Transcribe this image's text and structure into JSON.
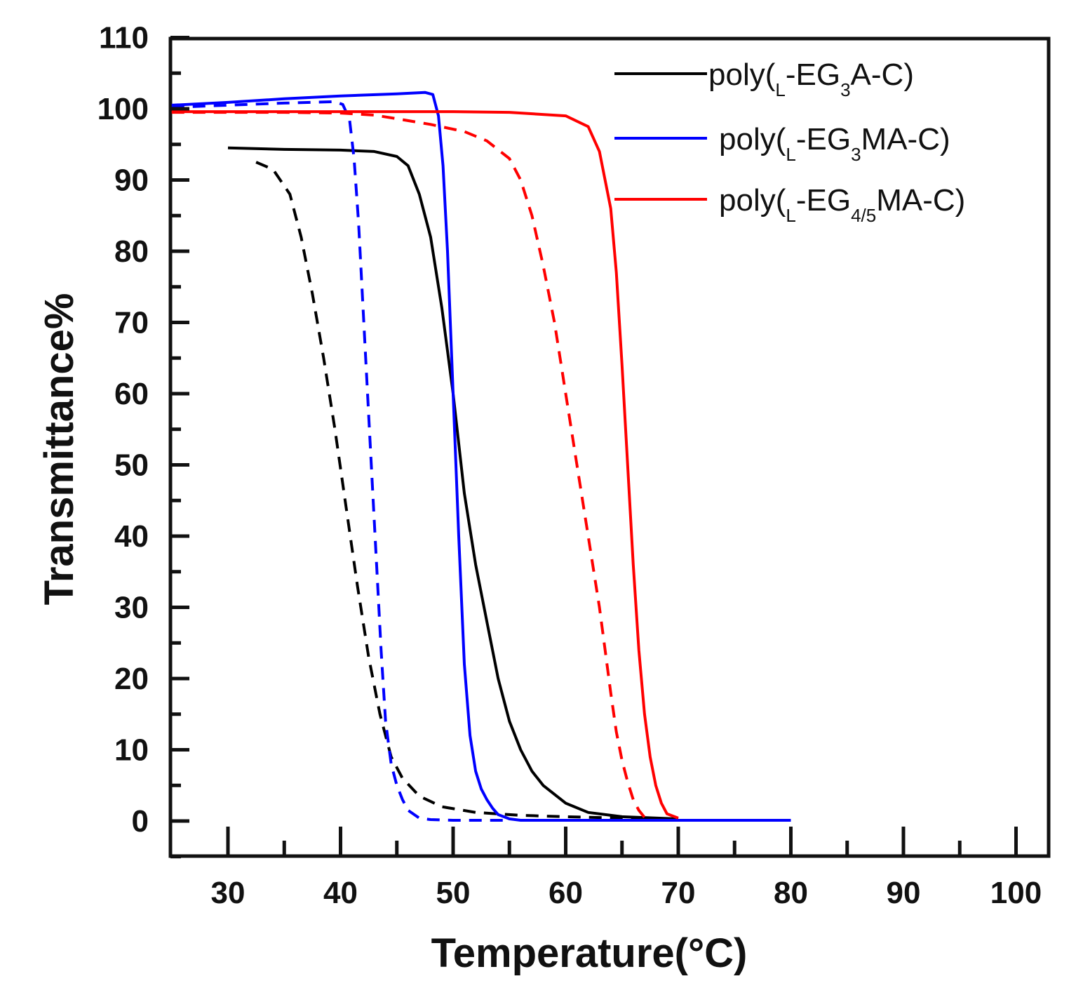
{
  "chart_data": {
    "type": "line",
    "xlabel": "Temperature(°C)",
    "ylabel": "Transmittance%",
    "xlim": [
      25,
      103
    ],
    "ylim": [
      -5,
      110
    ],
    "xticks": [
      30,
      40,
      50,
      60,
      70,
      80,
      90,
      100
    ],
    "yticks": [
      0,
      10,
      20,
      30,
      40,
      50,
      60,
      70,
      80,
      90,
      100,
      110
    ],
    "legend_position": "top-right",
    "legend": [
      {
        "series_color": "#000000",
        "parts": [
          "poly(",
          "L",
          "-EG",
          "3",
          "A-C)"
        ]
      },
      {
        "series_color": "#0000ff",
        "parts": [
          "poly(",
          "L",
          "-EG",
          "3",
          "MA-C)"
        ]
      },
      {
        "series_color": "#ff0000",
        "parts": [
          "poly(",
          "L",
          "-EG",
          "4/5",
          "MA-C)"
        ]
      }
    ],
    "series": [
      {
        "name": "poly(L-EG3A-C)",
        "color": "#000000",
        "style": "solid",
        "x": [
          30,
          35,
          40,
          43,
          45,
          46,
          47,
          48,
          49,
          50,
          51,
          52,
          53,
          54,
          55,
          56,
          57,
          58,
          60,
          62,
          65,
          70
        ],
        "y": [
          94.5,
          94.3,
          94.2,
          94,
          93.3,
          92,
          88,
          82,
          72,
          60,
          46,
          36,
          28,
          20,
          14,
          10,
          7,
          5,
          2.5,
          1.2,
          0.6,
          0.3
        ]
      },
      {
        "name": "poly(L-EG3A-C) dashed",
        "color": "#000000",
        "style": "dashed",
        "x": [
          32.5,
          34,
          35.5,
          36.5,
          37.5,
          38.5,
          39.5,
          40.5,
          41.5,
          42.5,
          43.5,
          44.5,
          45.5,
          47,
          49,
          52,
          56,
          60,
          65,
          70
        ],
        "y": [
          92.5,
          91.5,
          88,
          82,
          74,
          65,
          55,
          44,
          33,
          23,
          15,
          9,
          6,
          3.5,
          2,
          1.2,
          0.8,
          0.6,
          0.4,
          0.3
        ]
      },
      {
        "name": "poly(L-EG3MA-C)",
        "color": "#0000ff",
        "style": "solid",
        "x": [
          25,
          30,
          35,
          40,
          45,
          47.5,
          48.2,
          48.7,
          49.1,
          49.5,
          50,
          50.5,
          51,
          51.5,
          52,
          52.5,
          53,
          53.5,
          54,
          55,
          56,
          60,
          70,
          80
        ],
        "y": [
          100.5,
          100.9,
          101.4,
          101.8,
          102.1,
          102.3,
          102.0,
          99,
          92,
          80,
          60,
          40,
          22,
          12,
          7,
          4.5,
          3,
          1.8,
          0.9,
          0.3,
          0.1,
          0.1,
          0.1,
          0.1
        ]
      },
      {
        "name": "poly(L-EG3MA-C) dashed",
        "color": "#0000ff",
        "style": "dashed",
        "x": [
          25,
          30,
          35,
          39.5,
          40.2,
          40.8,
          41.2,
          41.6,
          42,
          42.4,
          42.8,
          43.2,
          43.6,
          44,
          44.5,
          45,
          45.5,
          46,
          47,
          48,
          50,
          55
        ],
        "y": [
          100.2,
          100.5,
          100.8,
          101.0,
          100.6,
          98.5,
          93,
          84,
          72,
          60,
          48,
          36,
          24,
          14,
          8,
          5,
          3,
          1.5,
          0.4,
          0.2,
          0.1,
          0.1
        ]
      },
      {
        "name": "poly(L-EG4/5MA-C)",
        "color": "#ff0000",
        "style": "solid",
        "x": [
          25,
          30,
          40,
          50,
          55,
          60,
          62,
          63,
          64,
          64.5,
          65,
          65.5,
          66,
          66.5,
          67,
          67.5,
          68,
          68.5,
          69,
          70
        ],
        "y": [
          99.6,
          99.6,
          99.6,
          99.6,
          99.5,
          99.0,
          97.5,
          94,
          86,
          77,
          64,
          50,
          36,
          24,
          15,
          9,
          5,
          2.5,
          1,
          0.4
        ]
      },
      {
        "name": "poly(L-EG4/5MA-C) dashed",
        "color": "#ff0000",
        "style": "dashed",
        "x": [
          25,
          30,
          35,
          40,
          43,
          45,
          48,
          51,
          53,
          55,
          56,
          57,
          58,
          59,
          60,
          61,
          62,
          63,
          63.5,
          64,
          64.5,
          65,
          65.5,
          66,
          66.5,
          67
        ],
        "y": [
          99.5,
          99.5,
          99.5,
          99.4,
          99.1,
          98.6,
          97.8,
          96.8,
          95.5,
          93,
          90,
          85,
          78,
          70,
          60,
          50,
          40,
          30,
          24,
          18,
          12.5,
          8.5,
          5.5,
          3,
          1.5,
          0.5
        ]
      }
    ]
  }
}
